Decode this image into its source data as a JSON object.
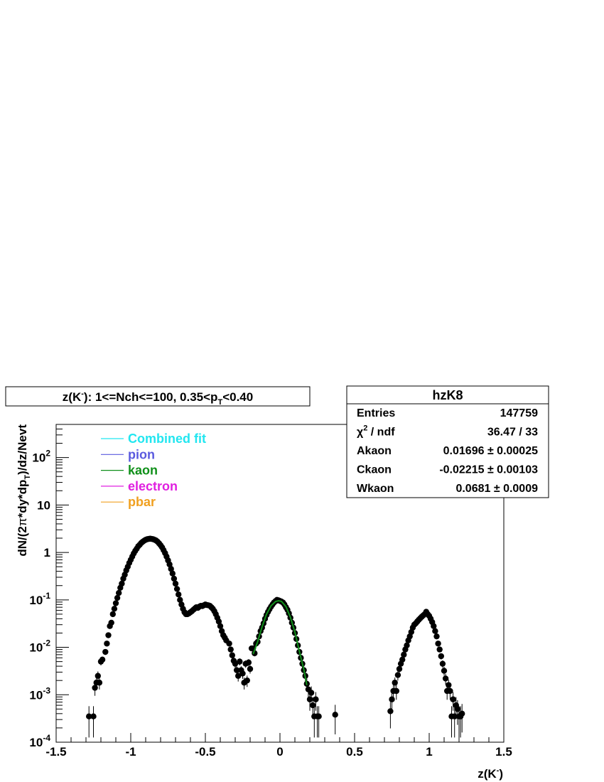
{
  "chart_data": {
    "type": "scatter",
    "title": {
      "prefix": "z(K",
      "sup": "-",
      "mid": "): 1<=Nch<=100, 0.35<p",
      "sub": "T",
      "suffix": "<0.40"
    },
    "xlabel": {
      "main": "z(K",
      "sup": "-",
      "tail": ")"
    },
    "ylabel": {
      "p1": "dN/(2",
      "p2": "π",
      "p3": "*dy*dp",
      "sub": "T",
      "p4": ")/dz/Nevt"
    },
    "xlim": [
      -1.5,
      1.5
    ],
    "ylim": [
      0.0001,
      500
    ],
    "log_y": true,
    "x_ticks": [
      "-1.5",
      "-1",
      "-0.5",
      "0",
      "0.5",
      "1",
      "1.5"
    ],
    "y_ticks": [
      {
        "base": "10",
        "exp": "-4",
        "value": 0.0001
      },
      {
        "base": "10",
        "exp": "-3",
        "value": 0.001
      },
      {
        "base": "10",
        "exp": "-2",
        "value": 0.01
      },
      {
        "base": "10",
        "exp": "-1",
        "value": 0.1
      },
      {
        "base": "1",
        "exp": "",
        "value": 1
      },
      {
        "base": "10",
        "exp": "",
        "value": 10
      },
      {
        "base": "10",
        "exp": "2",
        "value": 100
      }
    ],
    "legend": {
      "placement": "top-left",
      "entries": [
        {
          "label": "Combined fit",
          "color": "#22e6f0"
        },
        {
          "label": "pion",
          "color": "#5a5adf"
        },
        {
          "label": "kaon",
          "color": "#10901a"
        },
        {
          "label": "electron",
          "color": "#e020e0"
        },
        {
          "label": "pbar",
          "color": "#f0a020"
        }
      ]
    },
    "stats": {
      "name": "hzK8",
      "rows": [
        {
          "label": "Entries",
          "value": "147759"
        },
        {
          "label": "χ2 / ndf",
          "value": "36.47 / 33"
        },
        {
          "label": "Akaon",
          "value": "0.01696 ± 0.00025"
        },
        {
          "label": "Ckaon",
          "value": "-0.02215 ± 0.00103"
        },
        {
          "label": "Wkaon",
          "value": "0.0681 ± 0.0009"
        }
      ]
    },
    "series": [
      {
        "name": "data",
        "color": "#000000",
        "points": [
          [
            -1.28,
            0.00035
          ],
          [
            -1.25,
            0.00035
          ],
          [
            -1.24,
            0.0014
          ],
          [
            -1.23,
            0.0018
          ],
          [
            -1.22,
            0.0025
          ],
          [
            -1.21,
            0.0018
          ],
          [
            -1.2,
            0.005
          ],
          [
            -1.19,
            0.0055
          ],
          [
            -1.17,
            0.008
          ],
          [
            -1.16,
            0.012
          ],
          [
            -1.15,
            0.018
          ],
          [
            -1.14,
            0.028
          ],
          [
            -1.13,
            0.033
          ],
          [
            -1.12,
            0.05
          ],
          [
            -1.11,
            0.065
          ],
          [
            -1.1,
            0.085
          ],
          [
            -1.09,
            0.11
          ],
          [
            -1.08,
            0.14
          ],
          [
            -1.07,
            0.18
          ],
          [
            -1.06,
            0.22
          ],
          [
            -1.05,
            0.28
          ],
          [
            -1.04,
            0.34
          ],
          [
            -1.03,
            0.42
          ],
          [
            -1.02,
            0.5
          ],
          [
            -1.01,
            0.6
          ],
          [
            -1.0,
            0.7
          ],
          [
            -0.99,
            0.82
          ],
          [
            -0.98,
            0.95
          ],
          [
            -0.97,
            1.08
          ],
          [
            -0.96,
            1.2
          ],
          [
            -0.95,
            1.35
          ],
          [
            -0.94,
            1.45
          ],
          [
            -0.93,
            1.58
          ],
          [
            -0.92,
            1.68
          ],
          [
            -0.91,
            1.77
          ],
          [
            -0.9,
            1.85
          ],
          [
            -0.89,
            1.9
          ],
          [
            -0.88,
            1.93
          ],
          [
            -0.87,
            1.95
          ],
          [
            -0.86,
            1.93
          ],
          [
            -0.85,
            1.9
          ],
          [
            -0.84,
            1.85
          ],
          [
            -0.83,
            1.78
          ],
          [
            -0.82,
            1.68
          ],
          [
            -0.81,
            1.55
          ],
          [
            -0.8,
            1.42
          ],
          [
            -0.79,
            1.28
          ],
          [
            -0.78,
            1.12
          ],
          [
            -0.77,
            0.97
          ],
          [
            -0.76,
            0.82
          ],
          [
            -0.75,
            0.68
          ],
          [
            -0.74,
            0.56
          ],
          [
            -0.73,
            0.45
          ],
          [
            -0.72,
            0.36
          ],
          [
            -0.71,
            0.28
          ],
          [
            -0.7,
            0.22
          ],
          [
            -0.69,
            0.17
          ],
          [
            -0.68,
            0.13
          ],
          [
            -0.67,
            0.1
          ],
          [
            -0.66,
            0.08
          ],
          [
            -0.65,
            0.065
          ],
          [
            -0.64,
            0.055
          ],
          [
            -0.63,
            0.05
          ],
          [
            -0.62,
            0.05
          ],
          [
            -0.61,
            0.052
          ],
          [
            -0.6,
            0.055
          ],
          [
            -0.59,
            0.058
          ],
          [
            -0.58,
            0.062
          ],
          [
            -0.57,
            0.066
          ],
          [
            -0.56,
            0.07
          ],
          [
            -0.55,
            0.068
          ],
          [
            -0.54,
            0.072
          ],
          [
            -0.53,
            0.075
          ],
          [
            -0.52,
            0.074
          ],
          [
            -0.51,
            0.077
          ],
          [
            -0.5,
            0.08
          ],
          [
            -0.49,
            0.078
          ],
          [
            -0.48,
            0.077
          ],
          [
            -0.47,
            0.075
          ],
          [
            -0.46,
            0.07
          ],
          [
            -0.45,
            0.065
          ],
          [
            -0.44,
            0.058
          ],
          [
            -0.43,
            0.05
          ],
          [
            -0.42,
            0.042
          ],
          [
            -0.41,
            0.035
          ],
          [
            -0.4,
            0.028
          ],
          [
            -0.39,
            0.022
          ],
          [
            -0.38,
            0.018
          ],
          [
            -0.37,
            0.016
          ],
          [
            -0.36,
            0.014
          ],
          [
            -0.34,
            0.012
          ],
          [
            -0.33,
            0.009
          ],
          [
            -0.32,
            0.0068
          ],
          [
            -0.31,
            0.0052
          ],
          [
            -0.3,
            0.0045
          ],
          [
            -0.29,
            0.0033
          ],
          [
            -0.28,
            0.0025
          ],
          [
            -0.27,
            0.005
          ],
          [
            -0.26,
            0.0033
          ],
          [
            -0.25,
            0.0028
          ],
          [
            -0.24,
            0.0018
          ],
          [
            -0.23,
            0.0045
          ],
          [
            -0.22,
            0.002
          ],
          [
            -0.21,
            0.0048
          ],
          [
            -0.2,
            0.0035
          ],
          [
            -0.19,
            0.0095
          ],
          [
            -0.18,
            0.0095
          ],
          [
            -0.17,
            0.0075
          ],
          [
            -0.16,
            0.012
          ],
          [
            -0.15,
            0.013
          ],
          [
            -0.14,
            0.017
          ],
          [
            -0.13,
            0.022
          ],
          [
            -0.12,
            0.026
          ],
          [
            -0.11,
            0.032
          ],
          [
            -0.1,
            0.04
          ],
          [
            -0.09,
            0.048
          ],
          [
            -0.08,
            0.056
          ],
          [
            -0.07,
            0.064
          ],
          [
            -0.06,
            0.072
          ],
          [
            -0.05,
            0.08
          ],
          [
            -0.04,
            0.088
          ],
          [
            -0.03,
            0.094
          ],
          [
            -0.02,
            0.1
          ],
          [
            -0.01,
            0.098
          ],
          [
            0.0,
            0.095
          ],
          [
            0.01,
            0.092
          ],
          [
            0.02,
            0.088
          ],
          [
            0.03,
            0.08
          ],
          [
            0.04,
            0.07
          ],
          [
            0.05,
            0.062
          ],
          [
            0.06,
            0.052
          ],
          [
            0.07,
            0.042
          ],
          [
            0.08,
            0.033
          ],
          [
            0.09,
            0.026
          ],
          [
            0.1,
            0.02
          ],
          [
            0.11,
            0.015
          ],
          [
            0.12,
            0.011
          ],
          [
            0.13,
            0.008
          ],
          [
            0.14,
            0.006
          ],
          [
            0.15,
            0.0045
          ],
          [
            0.16,
            0.0033
          ],
          [
            0.17,
            0.0025
          ],
          [
            0.18,
            0.0017
          ],
          [
            0.19,
            0.0013
          ],
          [
            0.2,
            0.0008
          ],
          [
            0.21,
            0.0011
          ],
          [
            0.22,
            0.0006
          ],
          [
            0.23,
            0.00035
          ],
          [
            0.24,
            0.0008
          ],
          [
            0.25,
            0.00035
          ],
          [
            0.26,
            0.00035
          ],
          [
            0.37,
            0.00038
          ],
          [
            0.74,
            0.00045
          ],
          [
            0.75,
            0.0008
          ],
          [
            0.76,
            0.0012
          ],
          [
            0.77,
            0.0018
          ],
          [
            0.78,
            0.0012
          ],
          [
            0.79,
            0.0026
          ],
          [
            0.8,
            0.0035
          ],
          [
            0.81,
            0.0045
          ],
          [
            0.82,
            0.0055
          ],
          [
            0.83,
            0.007
          ],
          [
            0.84,
            0.009
          ],
          [
            0.85,
            0.011
          ],
          [
            0.86,
            0.014
          ],
          [
            0.87,
            0.017
          ],
          [
            0.88,
            0.021
          ],
          [
            0.89,
            0.026
          ],
          [
            0.9,
            0.03
          ],
          [
            0.91,
            0.032
          ],
          [
            0.92,
            0.035
          ],
          [
            0.93,
            0.038
          ],
          [
            0.94,
            0.041
          ],
          [
            0.95,
            0.044
          ],
          [
            0.96,
            0.047
          ],
          [
            0.97,
            0.05
          ],
          [
            0.98,
            0.056
          ],
          [
            0.99,
            0.05
          ],
          [
            1.0,
            0.046
          ],
          [
            1.01,
            0.04
          ],
          [
            1.02,
            0.034
          ],
          [
            1.03,
            0.028
          ],
          [
            1.04,
            0.022
          ],
          [
            1.05,
            0.017
          ],
          [
            1.06,
            0.012
          ],
          [
            1.07,
            0.009
          ],
          [
            1.08,
            0.0065
          ],
          [
            1.09,
            0.0045
          ],
          [
            1.1,
            0.0032
          ],
          [
            1.11,
            0.0022
          ],
          [
            1.12,
            0.0012
          ],
          [
            1.13,
            0.0016
          ],
          [
            1.14,
            0.0012
          ],
          [
            1.15,
            0.00035
          ],
          [
            1.16,
            0.0008
          ],
          [
            1.17,
            0.00035
          ],
          [
            1.18,
            0.0006
          ],
          [
            1.19,
            0.0005
          ],
          [
            1.2,
            0.00035
          ],
          [
            1.21,
            0.00035
          ],
          [
            1.22,
            0.0004
          ]
        ]
      },
      {
        "name": "kaon",
        "color": "#10901a",
        "points": [
          [
            -0.18,
            0.0072
          ],
          [
            -0.15,
            0.013
          ],
          [
            -0.12,
            0.027
          ],
          [
            -0.09,
            0.05
          ],
          [
            -0.06,
            0.075
          ],
          [
            -0.03,
            0.092
          ],
          [
            -0.01,
            0.096
          ],
          [
            0.01,
            0.093
          ],
          [
            0.04,
            0.072
          ],
          [
            0.07,
            0.043
          ],
          [
            0.1,
            0.021
          ],
          [
            0.13,
            0.0082
          ],
          [
            0.16,
            0.0034
          ],
          [
            0.18,
            0.0016
          ]
        ]
      }
    ]
  }
}
